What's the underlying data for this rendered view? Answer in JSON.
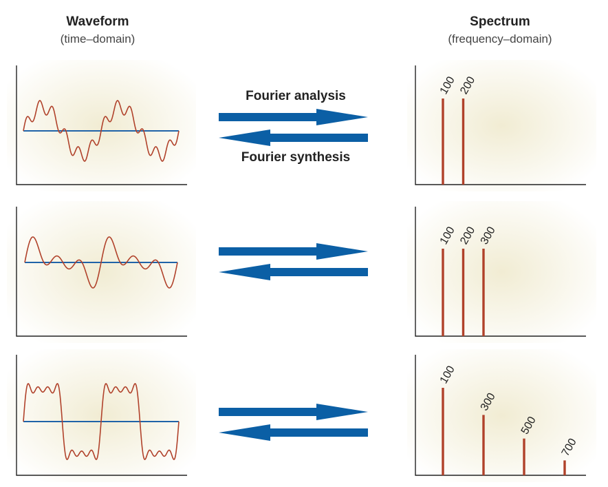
{
  "headers": {
    "waveform_title": "Waveform",
    "waveform_subtitle": "(time–domain)",
    "spectrum_title": "Spectrum",
    "spectrum_subtitle": "(frequency–domain)"
  },
  "arrows": {
    "analysis_label": "Fourier analysis",
    "synthesis_label": "Fourier synthesis"
  },
  "colors": {
    "waveform": "#b0412a",
    "baseline": "#1f63a8",
    "arrow": "#0b5fa5",
    "spectral_line": "#b0412a",
    "panel_glow": "#f1ecd3",
    "axis": "#222222"
  },
  "chart_data": [
    {
      "type": "bar",
      "categories": [
        "100",
        "200"
      ],
      "values": [
        1.0,
        1.0
      ]
    },
    {
      "type": "bar",
      "categories": [
        "100",
        "200",
        "300"
      ],
      "values": [
        1.0,
        1.0,
        1.0
      ]
    },
    {
      "type": "bar",
      "categories": [
        "100",
        "300",
        "500",
        "700"
      ],
      "values": [
        1.0,
        0.69,
        0.42,
        0.17
      ]
    }
  ]
}
